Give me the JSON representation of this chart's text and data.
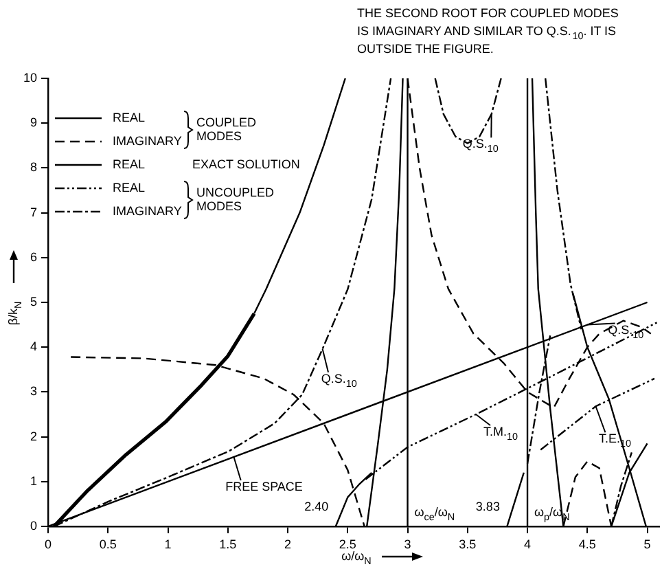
{
  "chart_data": {
    "type": "line",
    "title": "THE SECOND ROOT FOR COUPLED MODES IS IMAGINARY AND SIMILAR TO Q.S.$_{10}$. IT IS OUTSIDE THE FIGURE.",
    "xlabel": "ω/ω$_{N}$",
    "ylabel": "β/k$_{N}$",
    "xlim": [
      0,
      5.1
    ],
    "xticks": [
      0,
      0.5,
      1,
      1.5,
      2,
      2.5,
      3,
      3.5,
      4,
      4.5,
      5
    ],
    "ylim": [
      0,
      10
    ],
    "yticks": [
      0,
      1,
      2,
      3,
      4,
      5,
      6,
      7,
      8,
      9,
      10
    ],
    "legend": "top left",
    "marker": "none",
    "series": [
      {
        "name": "REAL",
        "color": "#000000",
        "line_style": "solid",
        "x": [
          1.72,
          1.82,
          2.1,
          2.3,
          2.48
        ],
        "values": [
          4.75,
          5.3,
          7,
          8.5,
          10
        ]
      },
      {
        "name": "IMAGINARY",
        "color": "#000000",
        "line_style": "dashed",
        "x": [
          0.19,
          0.8,
          1.4,
          1.8,
          2.05,
          2.3,
          2.5,
          2.64
        ],
        "values": [
          3.78,
          3.75,
          3.6,
          3.3,
          2.94,
          2.3,
          1.26,
          0
        ]
      },
      {
        "name": "REAL",
        "color": "#000000",
        "line_style": "solid",
        "x": [
          0.05,
          0.33,
          0.65,
          0.98,
          1.28,
          1.5,
          1.72
        ],
        "values": [
          0,
          0.8,
          1.6,
          2.33,
          3.15,
          3.8,
          4.75
        ]
      },
      {
        "name": "REAL",
        "color": "#000000",
        "line_style": "dashdotdot",
        "x": [
          2.65,
          3.0,
          3.57,
          4.2,
          5.08
        ],
        "values": [
          1.05,
          1.77,
          2.5,
          3.35,
          4.55
        ]
      },
      {
        "name": "IMAGINARY",
        "color": "#000000",
        "line_style": "dashdot",
        "x": [
          0.05,
          0.5,
          1.0,
          1.51,
          1.89,
          2.12,
          2.29,
          2.5,
          2.7,
          2.86
        ],
        "values": [
          0,
          0.55,
          1.1,
          1.68,
          2.3,
          2.94,
          3.96,
          5.29,
          7.3,
          10
        ]
      },
      {
        "color": "#000000",
        "line_style": "solid",
        "x": [
          2.4,
          2.5,
          2.6,
          2.7
        ],
        "values": [
          0,
          0.65,
          0.95,
          1.2
        ]
      },
      {
        "color": "#000000",
        "line_style": "solid",
        "x": [
          2.66,
          2.75,
          2.83,
          2.89,
          2.93,
          2.96
        ],
        "values": [
          0,
          1.8,
          3.5,
          5.3,
          7.5,
          10
        ]
      },
      {
        "color": "#000000",
        "line_style": "solid",
        "x": [
          3.83,
          3.9,
          3.97
        ],
        "values": [
          0,
          0.6,
          1.2
        ]
      },
      {
        "color": "#000000",
        "line_style": "solid",
        "x": [
          4.04,
          4.07,
          4.09,
          4.19,
          4.3
        ],
        "values": [
          10,
          7,
          5.3,
          2.63,
          0
        ]
      },
      {
        "color": "#000000",
        "line_style": "solid",
        "x": [
          4.38,
          4.5,
          4.68,
          4.85,
          4.99
        ],
        "values": [
          5.2,
          4.0,
          2.84,
          1.3,
          0
        ]
      },
      {
        "color": "#000000",
        "line_style": "solid",
        "x": [
          4.7,
          4.85,
          5.0
        ],
        "values": [
          0,
          1.2,
          1.85
        ]
      },
      {
        "color": "#000000",
        "line_style": "dashed",
        "x": [
          3.0,
          3.1,
          3.2,
          3.34,
          3.55,
          3.8,
          4.0,
          4.22,
          4.35,
          4.5,
          4.6,
          4.8,
          4.95,
          5.03
        ],
        "values": [
          10,
          8,
          6.5,
          5.3,
          4.3,
          3.65,
          3.0,
          2.65,
          3.3,
          4.0,
          4.3,
          4.59,
          4.45,
          4.3
        ]
      },
      {
        "color": "#000000",
        "line_style": "dashed",
        "x": [
          4.3,
          4.4,
          4.5,
          4.6,
          4.7
        ],
        "values": [
          0,
          1.1,
          1.45,
          1.3,
          0
        ]
      },
      {
        "color": "#000000",
        "line_style": "dashdotdot",
        "x": [
          4.11,
          4.57,
          5.06
        ],
        "values": [
          1.71,
          2.68,
          3.3
        ]
      },
      {
        "color": "#000000",
        "line_style": "dashdot",
        "x": [
          3.23,
          3.3,
          3.4,
          3.5,
          3.6,
          3.7,
          3.78
        ],
        "values": [
          10,
          9.2,
          8.7,
          8.55,
          8.7,
          9.2,
          10
        ]
      },
      {
        "color": "#000000",
        "line_style": "dashdot",
        "x": [
          4.15,
          4.25,
          4.36,
          4.45
        ],
        "values": [
          10,
          7.5,
          5.4,
          4.4
        ]
      },
      {
        "color": "#000000",
        "line_style": "dashdot",
        "x": [
          4.0,
          4.1,
          4.19
        ],
        "values": [
          1.4,
          3.0,
          4.26
        ]
      },
      {
        "color": "#000000",
        "line_style": "dashdot",
        "x": [
          4.7,
          4.78,
          4.87
        ],
        "values": [
          0,
          0.9,
          1.65
        ]
      },
      {
        "color": "#000000",
        "line_style": "solid",
        "x": [
          0,
          5
        ],
        "values": [
          0,
          5
        ]
      }
    ],
    "ref_lines": [
      {
        "axis": "x",
        "value": 3,
        "label": "ω$_{ce}$/ω$_{N}$"
      },
      {
        "axis": "x",
        "value": 4,
        "label": "ω$_{p}$/ω$_{N}$"
      }
    ],
    "annotations": [
      "COUPLED MODES",
      "EXACT SOLUTION",
      "UNCOUPLED MODES",
      {
        "text": "FREE SPACE",
        "x": 1.55,
        "y": 1.55
      },
      {
        "text": "Q.S.$_{10}$",
        "x": 2.29,
        "y": 3.96
      },
      {
        "text": "Q.S.$_{10}$",
        "x": 3.7,
        "y": 9.2
      },
      {
        "text": "Q.S.$_{10}$",
        "x": 4.5,
        "y": 4.5
      },
      {
        "text": "T.M.$_{10}$",
        "x": 3.57,
        "y": 2.5
      },
      {
        "text": "T.E.$_{10}$",
        "x": 4.57,
        "y": 2.68
      },
      {
        "text": "2.40",
        "x": 2.4,
        "y": 0
      },
      {
        "text": "3.83",
        "x": 3.83,
        "y": 0
      }
    ]
  }
}
